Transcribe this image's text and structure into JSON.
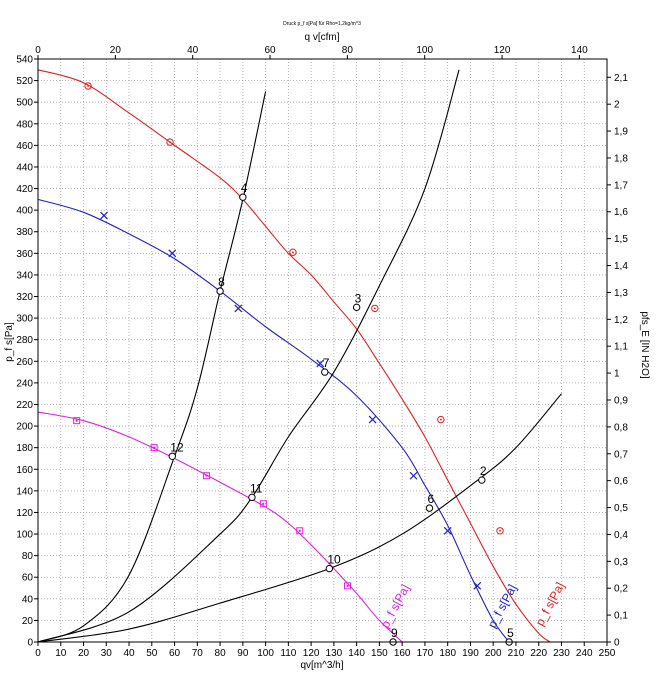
{
  "chart_data": {
    "type": "line",
    "title": "Druck p_f s[Pa] für Rho=1,2kg/m^3",
    "xlabel": "qv[m^3/h]",
    "x2label": "q v[cfm]",
    "ylabel": "p_f s[Pa]",
    "y2label": "pfs_E [IN H2O]",
    "xlim": [
      0,
      250
    ],
    "ylim": [
      0,
      540
    ],
    "x2lim": [
      0,
      147.14
    ],
    "y2lim": [
      0,
      2.168
    ],
    "x_ticks": [
      0,
      10,
      20,
      30,
      40,
      50,
      60,
      70,
      80,
      90,
      100,
      110,
      120,
      130,
      140,
      150,
      160,
      170,
      180,
      190,
      200,
      210,
      220,
      230,
      240,
      250
    ],
    "y_ticks": [
      0,
      20,
      40,
      60,
      80,
      100,
      120,
      140,
      160,
      180,
      200,
      220,
      240,
      260,
      280,
      300,
      320,
      340,
      360,
      380,
      400,
      420,
      440,
      460,
      480,
      500,
      520,
      540
    ],
    "x2_ticks": [
      0,
      20,
      40,
      60,
      80,
      100,
      120,
      140
    ],
    "y2_ticks": [
      "0",
      "0,1",
      "0,2",
      "0,3",
      "0,4",
      "0,5",
      "0,6",
      "0,7",
      "0,8",
      "0,9",
      "1",
      "1,1",
      "1,2",
      "1,3",
      "1,4",
      "1,5",
      "1,6",
      "1,7",
      "1,8",
      "1,9",
      "2",
      "2,1"
    ],
    "grid": true,
    "series": [
      {
        "name": "p_f s[Pa]",
        "color": "#e02020",
        "marker": "circle",
        "x": [
          0,
          20,
          40,
          60,
          80,
          90,
          100,
          110,
          120,
          130,
          140,
          150,
          160,
          170,
          180,
          190,
          200,
          210,
          220,
          225
        ],
        "y": [
          530,
          518,
          490,
          460,
          430,
          410,
          385,
          360,
          340,
          315,
          290,
          258,
          225,
          190,
          150,
          110,
          70,
          35,
          8,
          0
        ],
        "marker_x": [
          22,
          58,
          112,
          148,
          177,
          203
        ],
        "marker_y": [
          515,
          463,
          361,
          309,
          206,
          103
        ]
      },
      {
        "name": "p_f s[Pa]",
        "color": "#2020c0",
        "marker": "x",
        "x": [
          0,
          20,
          40,
          60,
          80,
          100,
          120,
          140,
          160,
          170,
          180,
          190,
          200,
          207
        ],
        "y": [
          410,
          398,
          378,
          355,
          325,
          292,
          262,
          228,
          180,
          145,
          108,
          62,
          20,
          0
        ],
        "marker_x": [
          29,
          59,
          88,
          124,
          147,
          165,
          180,
          193
        ],
        "marker_y": [
          395,
          360,
          309,
          258,
          206,
          154,
          103,
          52
        ]
      },
      {
        "name": "p_f s[Pa]",
        "color": "#e020e0",
        "marker": "square",
        "x": [
          0,
          20,
          40,
          60,
          80,
          100,
          110,
          120,
          130,
          140,
          150,
          160
        ],
        "y": [
          213,
          205,
          190,
          170,
          148,
          125,
          110,
          90,
          68,
          45,
          20,
          0
        ],
        "marker_x": [
          17,
          51,
          74,
          99,
          115,
          136
        ],
        "marker_y": [
          205,
          180,
          154,
          128,
          103,
          52
        ]
      },
      {
        "name": "",
        "color": "#000000",
        "marker": "none",
        "x": [
          0,
          20,
          40,
          60,
          70,
          80,
          90,
          100
        ],
        "y": [
          0,
          15,
          62,
          172,
          235,
          325,
          410,
          510
        ]
      },
      {
        "name": "",
        "color": "#000000",
        "marker": "none",
        "x": [
          0,
          40,
          80,
          94,
          110,
          130,
          150,
          170,
          185
        ],
        "y": [
          0,
          28,
          100,
          134,
          190,
          250,
          330,
          420,
          530
        ]
      },
      {
        "name": "",
        "color": "#000000",
        "marker": "none",
        "x": [
          0,
          40,
          80,
          128,
          160,
          192,
          210,
          230
        ],
        "y": [
          0,
          12,
          36,
          68,
          100,
          148,
          180,
          230
        ]
      }
    ],
    "operating_points": [
      {
        "label": "2",
        "x": 195,
        "y": 150
      },
      {
        "label": "3",
        "x": 140,
        "y": 310
      },
      {
        "label": "4",
        "x": 90,
        "y": 412
      },
      {
        "label": "5",
        "x": 207,
        "y": 0
      },
      {
        "label": "6",
        "x": 172,
        "y": 124
      },
      {
        "label": "7",
        "x": 126,
        "y": 250
      },
      {
        "label": "8",
        "x": 80,
        "y": 325
      },
      {
        "label": "9",
        "x": 156,
        "y": 0
      },
      {
        "label": "10",
        "x": 128,
        "y": 68
      },
      {
        "label": "11",
        "x": 94,
        "y": 134
      },
      {
        "label": "12",
        "x": 59,
        "y": 172
      }
    ],
    "curve_labels": [
      {
        "text": "p_f s[Pa]",
        "color": "#e02020"
      },
      {
        "text": "p_f s[Pa]",
        "color": "#2020c0"
      },
      {
        "text": "p_f s[Pa]",
        "color": "#e020e0"
      }
    ]
  }
}
